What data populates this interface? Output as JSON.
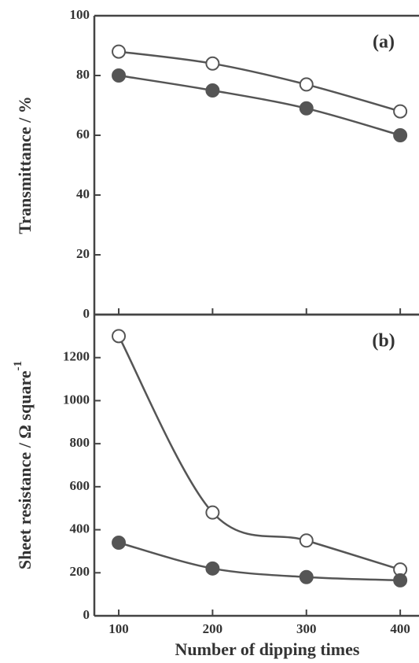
{
  "chart_data": [
    {
      "type": "line",
      "annotation": "(a)",
      "ylabel": "Transmittance / %",
      "x": [
        100,
        200,
        300,
        400
      ],
      "xlim": [
        74,
        420
      ],
      "xticks": [
        100,
        200,
        300,
        400
      ],
      "ylim": [
        0,
        100
      ],
      "yticks": [
        0,
        20,
        40,
        60,
        80,
        100
      ],
      "series": [
        {
          "color": "#555555",
          "marker": "open",
          "values": [
            88,
            84,
            77,
            68
          ]
        },
        {
          "color": "#555555",
          "marker": "filled",
          "values": [
            80,
            75,
            69,
            60
          ]
        }
      ]
    },
    {
      "type": "line",
      "annotation": "(b)",
      "ylabel": "Sheet resistance / Ω square",
      "ylabel_superscript": "-1",
      "xlabel": "Number of dipping times",
      "x": [
        100,
        200,
        300,
        400
      ],
      "xlim": [
        74,
        420
      ],
      "xticks": [
        100,
        200,
        300,
        400
      ],
      "ylim": [
        0,
        1400
      ],
      "yticks": [
        0,
        200,
        400,
        600,
        800,
        1000,
        1200
      ],
      "series": [
        {
          "color": "#555555",
          "marker": "open",
          "values": [
            1300,
            480,
            350,
            215
          ]
        },
        {
          "color": "#555555",
          "marker": "filled",
          "values": [
            340,
            220,
            180,
            165
          ]
        }
      ]
    }
  ]
}
